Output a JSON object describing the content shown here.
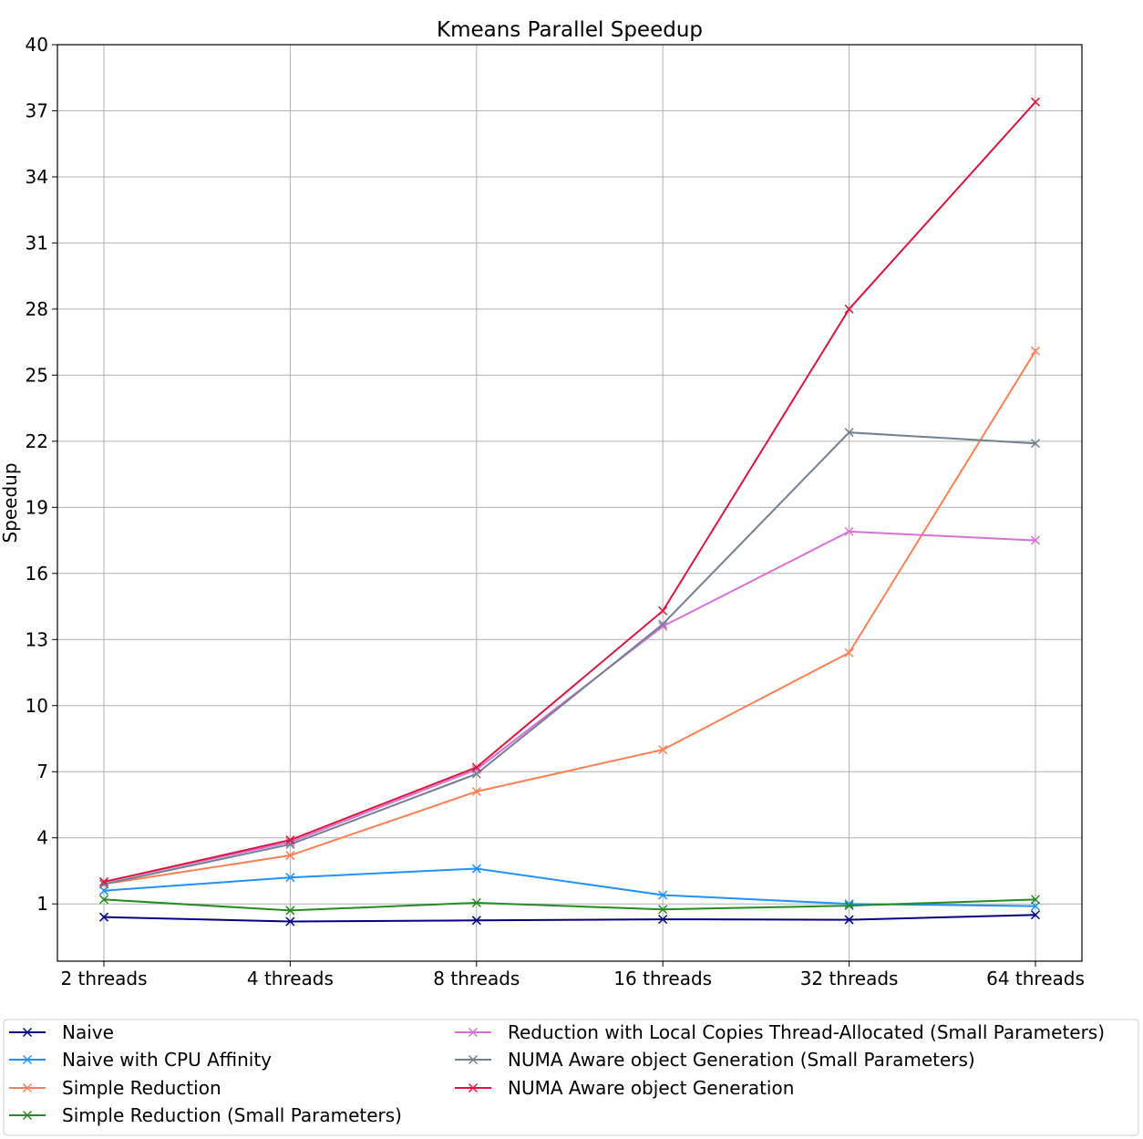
{
  "chart_data": {
    "type": "line",
    "title": "Kmeans Parallel Speedup",
    "xlabel": "",
    "ylabel": "Speedup",
    "categories": [
      "2 threads",
      "4 threads",
      "8 threads",
      "16 threads",
      "32 threads",
      "64 threads"
    ],
    "ylim": [
      -1.6,
      40
    ],
    "yticks": [
      1,
      4,
      7,
      10,
      13,
      16,
      19,
      22,
      25,
      28,
      31,
      34,
      37,
      40
    ],
    "grid": true,
    "legend_position": "bottom",
    "marker": "x",
    "series": [
      {
        "name": "Naive",
        "color": "#000080",
        "values": [
          0.4,
          0.2,
          0.25,
          0.3,
          0.28,
          0.5
        ]
      },
      {
        "name": "Naive with CPU Affinity",
        "color": "#1e90ff",
        "values": [
          1.6,
          2.2,
          2.6,
          1.4,
          1.0,
          0.9
        ]
      },
      {
        "name": "Simple Reduction",
        "color": "#ff7f50",
        "values": [
          1.9,
          3.2,
          6.1,
          8.0,
          12.4,
          26.1
        ]
      },
      {
        "name": "Simple Reduction (Small Parameters)",
        "color": "#228b22",
        "values": [
          1.2,
          0.7,
          1.05,
          0.75,
          0.92,
          1.2
        ]
      },
      {
        "name": "Reduction with Local Copies Thread-Allocated (Small Parameters)",
        "color": "#da70d6",
        "values": [
          2.0,
          3.8,
          7.1,
          13.6,
          17.9,
          17.5
        ]
      },
      {
        "name": "NUMA Aware object Generation (Small Parameters)",
        "color": "#708090",
        "values": [
          1.9,
          3.7,
          6.9,
          13.7,
          22.4,
          21.9
        ]
      },
      {
        "name": "NUMA Aware object Generation",
        "color": "#dc143c",
        "values": [
          2.0,
          3.9,
          7.2,
          14.3,
          28.0,
          37.4
        ]
      }
    ]
  }
}
